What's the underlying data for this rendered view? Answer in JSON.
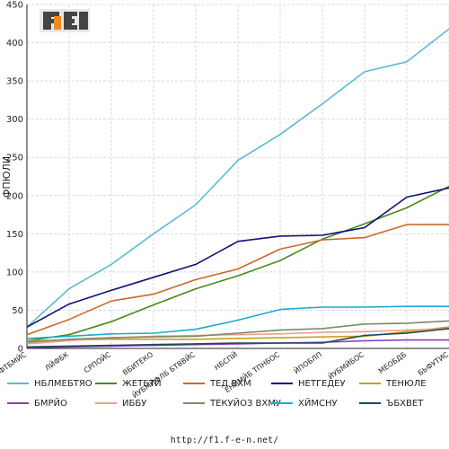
{
  "footer": "http://f1.f-e-n.net/",
  "logo_text": "F1-FEN",
  "chart_data": {
    "type": "line",
    "title": "",
    "xlabel": "",
    "ylabel": "ФПЮЛИ",
    "ylim": [
      0,
      450
    ],
    "yticks": [
      0,
      50,
      100,
      150,
      200,
      250,
      300,
      350,
      400,
      450
    ],
    "grid": true,
    "legend_position": "bottom",
    "categories": [
      "БФУФТБМЙС",
      "ЛЙФБК",
      "СРПОЙС",
      "ВБИТЕКО",
      "ЙУБМЙФЛБ БТВВЙС",
      "НБСПЙ",
      "ЕНЙМЙБ ТПНБОС",
      "ЙПОБЛП",
      "ЙУБМЙБОС",
      "МЕОБДБ",
      "БЬФУТИС"
    ],
    "series": [
      {
        "name": "НБЛМЕБТЯО",
        "color": "#5bbbd0",
        "values": [
          28,
          78,
          110,
          150,
          188,
          246,
          280,
          320,
          362,
          375,
          418
        ]
      },
      {
        "name": "ЖЕТБТЙ",
        "color": "#4a8a1a",
        "values": [
          10,
          18,
          35,
          57,
          78,
          95,
          115,
          143,
          163,
          184,
          212
        ]
      },
      {
        "name": "ТЕД ВХМ",
        "color": "#c86a28",
        "values": [
          18,
          38,
          62,
          71,
          90,
          104,
          130,
          142,
          145,
          162,
          162
        ]
      },
      {
        "name": "НЕТГЕДЕУ",
        "color": "#10107a",
        "values": [
          28,
          58,
          76,
          93,
          110,
          140,
          147,
          148,
          158,
          198,
          210
        ]
      },
      {
        "name": "ТЕНЮЛЕ",
        "color": "#c8a020",
        "values": [
          10,
          11,
          12,
          12,
          12,
          13,
          14,
          15,
          16,
          22,
          28
        ]
      },
      {
        "name": "БМРЙО",
        "color": "#8a3ac0",
        "values": [
          1,
          2,
          3,
          4,
          5,
          6,
          7,
          8,
          10,
          11,
          11
        ]
      },
      {
        "name": "ИББУ",
        "color": "#f0a08a",
        "values": [
          6,
          10,
          14,
          16,
          17,
          18,
          19,
          21,
          22,
          24,
          26
        ]
      },
      {
        "name": "ТЕКУЙОЗ ВХМУ",
        "color": "#7a8a6a",
        "values": [
          8,
          12,
          14,
          15,
          16,
          20,
          24,
          26,
          32,
          33,
          36
        ]
      },
      {
        "name": "ХЙМСНУ",
        "color": "#1aaad0",
        "values": [
          13,
          16,
          19,
          20,
          25,
          37,
          51,
          54,
          54,
          55,
          55
        ]
      },
      {
        "name": "ЪБХВЕТ",
        "color": "#1a4a5a",
        "values": [
          2,
          3,
          4,
          5,
          6,
          7,
          7,
          7,
          17,
          20,
          26
        ]
      }
    ]
  }
}
